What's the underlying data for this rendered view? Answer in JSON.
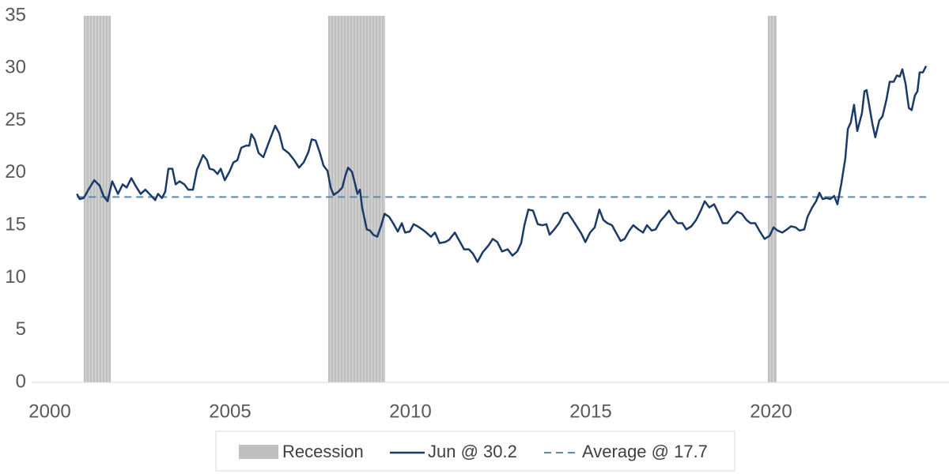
{
  "chart_data": {
    "type": "line",
    "x": [
      2000.75,
      2000.83,
      2000.94,
      2001.07,
      2001.23,
      2001.38,
      2001.49,
      2001.6,
      2001.73,
      2001.89,
      2002.02,
      2002.13,
      2002.26,
      2002.39,
      2002.52,
      2002.65,
      2002.79,
      2002.92,
      2003.0,
      2003.11,
      2003.2,
      2003.29,
      2003.4,
      2003.49,
      2003.6,
      2003.73,
      2003.84,
      2003.97,
      2004.08,
      2004.25,
      2004.36,
      2004.43,
      2004.54,
      2004.65,
      2004.74,
      2004.85,
      2004.98,
      2005.09,
      2005.2,
      2005.31,
      2005.44,
      2005.53,
      2005.59,
      2005.68,
      2005.79,
      2005.92,
      2006.07,
      2006.25,
      2006.36,
      2006.47,
      2006.62,
      2006.78,
      2006.91,
      2007.04,
      2007.17,
      2007.26,
      2007.37,
      2007.48,
      2007.59,
      2007.7,
      2007.79,
      2007.87,
      2008.0,
      2008.11,
      2008.2,
      2008.27,
      2008.38,
      2008.46,
      2008.53,
      2008.6,
      2008.66,
      2008.79,
      2008.88,
      2008.97,
      2009.08,
      2009.19,
      2009.28,
      2009.41,
      2009.52,
      2009.65,
      2009.76,
      2009.85,
      2009.98,
      2010.09,
      2010.2,
      2010.33,
      2010.44,
      2010.57,
      2010.68,
      2010.81,
      2010.96,
      2011.07,
      2011.23,
      2011.36,
      2011.49,
      2011.62,
      2011.73,
      2011.86,
      2012.0,
      2012.17,
      2012.28,
      2012.41,
      2012.54,
      2012.7,
      2012.83,
      2012.96,
      2013.07,
      2013.16,
      2013.27,
      2013.4,
      2013.53,
      2013.66,
      2013.77,
      2013.86,
      2013.99,
      2014.12,
      2014.25,
      2014.36,
      2014.5,
      2014.63,
      2014.74,
      2014.85,
      2014.98,
      2015.11,
      2015.24,
      2015.35,
      2015.46,
      2015.59,
      2015.7,
      2015.83,
      2015.94,
      2016.07,
      2016.18,
      2016.32,
      2016.45,
      2016.56,
      2016.69,
      2016.8,
      2016.93,
      2017.06,
      2017.17,
      2017.3,
      2017.41,
      2017.54,
      2017.65,
      2017.79,
      2017.92,
      2018.05,
      2018.16,
      2018.29,
      2018.42,
      2018.55,
      2018.66,
      2018.79,
      2018.93,
      2019.06,
      2019.19,
      2019.32,
      2019.43,
      2019.56,
      2019.69,
      2019.82,
      2019.96,
      2020.07,
      2020.18,
      2020.31,
      2020.44,
      2020.55,
      2020.68,
      2020.79,
      2020.92,
      2021.01,
      2021.14,
      2021.25,
      2021.34,
      2021.43,
      2021.54,
      2021.64,
      2021.75,
      2021.84,
      2021.95,
      2022.06,
      2022.13,
      2022.21,
      2022.3,
      2022.39,
      2022.52,
      2022.59,
      2022.65,
      2022.72,
      2022.81,
      2022.89,
      2023.0,
      2023.09,
      2023.2,
      2023.29,
      2023.4,
      2023.49,
      2023.57,
      2023.64,
      2023.73,
      2023.82,
      2023.9,
      2023.99,
      2024.06,
      2024.12,
      2024.21,
      2024.3
    ],
    "series": [
      {
        "name": "Jun @ 30.2",
        "color": "#1b3a68",
        "values": [
          18.0,
          17.5,
          17.6,
          18.4,
          19.3,
          18.8,
          17.8,
          17.3,
          19.2,
          18.0,
          18.9,
          18.6,
          19.5,
          18.7,
          18.0,
          18.4,
          17.9,
          17.4,
          18.0,
          17.6,
          18.2,
          20.4,
          20.4,
          18.9,
          19.2,
          18.9,
          18.4,
          18.4,
          20.3,
          21.7,
          21.2,
          20.4,
          20.3,
          19.9,
          20.4,
          19.3,
          20.1,
          21.0,
          21.2,
          22.4,
          22.6,
          22.6,
          23.7,
          23.2,
          21.9,
          21.5,
          22.9,
          24.5,
          23.8,
          22.3,
          21.9,
          21.2,
          20.5,
          21.0,
          22.0,
          23.2,
          23.1,
          22.0,
          20.7,
          20.2,
          18.6,
          17.9,
          18.2,
          18.6,
          19.8,
          20.5,
          20.1,
          19.0,
          18.0,
          18.4,
          16.7,
          14.6,
          14.5,
          14.1,
          13.9,
          15.0,
          16.1,
          15.8,
          15.2,
          14.4,
          15.2,
          14.3,
          14.4,
          15.1,
          14.9,
          14.6,
          14.3,
          13.9,
          14.3,
          13.3,
          13.4,
          13.6,
          14.3,
          13.5,
          12.7,
          12.7,
          12.3,
          11.5,
          12.4,
          13.1,
          13.7,
          13.4,
          12.5,
          12.7,
          12.1,
          12.5,
          13.3,
          15.0,
          16.5,
          16.4,
          15.1,
          15.0,
          15.1,
          14.1,
          14.6,
          15.2,
          16.1,
          16.2,
          15.5,
          14.8,
          14.2,
          13.4,
          14.3,
          14.8,
          16.5,
          15.5,
          15.2,
          15.0,
          14.3,
          13.5,
          13.7,
          14.5,
          15.0,
          14.6,
          14.3,
          15.0,
          14.5,
          14.6,
          15.4,
          15.9,
          16.4,
          15.6,
          15.2,
          15.2,
          14.6,
          14.9,
          15.5,
          16.4,
          17.3,
          16.7,
          17.0,
          16.1,
          15.2,
          15.2,
          15.8,
          16.3,
          16.1,
          15.5,
          15.2,
          15.2,
          14.4,
          13.7,
          14.0,
          14.8,
          14.5,
          14.3,
          14.6,
          14.9,
          14.8,
          14.5,
          14.6,
          15.8,
          16.7,
          17.3,
          18.1,
          17.5,
          17.6,
          17.5,
          17.8,
          17.0,
          19.0,
          21.4,
          24.2,
          24.8,
          26.5,
          24.0,
          25.7,
          27.8,
          27.9,
          26.5,
          24.7,
          23.4,
          25.0,
          25.4,
          27.0,
          28.7,
          28.7,
          29.3,
          29.2,
          29.9,
          28.5,
          26.2,
          26.0,
          27.4,
          27.8,
          29.6,
          29.6,
          30.2
        ]
      }
    ],
    "average": {
      "name": "Average @ 17.7",
      "value": 17.7,
      "color": "#5d8aa8"
    },
    "recession": {
      "name": "Recession",
      "color": "#bfbfbf",
      "periods": [
        [
          2000.94,
          2001.69
        ],
        [
          2007.72,
          2009.3
        ],
        [
          2019.91,
          2020.15
        ]
      ]
    },
    "xlim": [
      2000,
      2024.5
    ],
    "xticks": [
      2000,
      2005,
      2010,
      2015,
      2020
    ],
    "ylim": [
      0,
      35
    ],
    "yticks": [
      0,
      5,
      10,
      15,
      20,
      25,
      30,
      35
    ]
  }
}
